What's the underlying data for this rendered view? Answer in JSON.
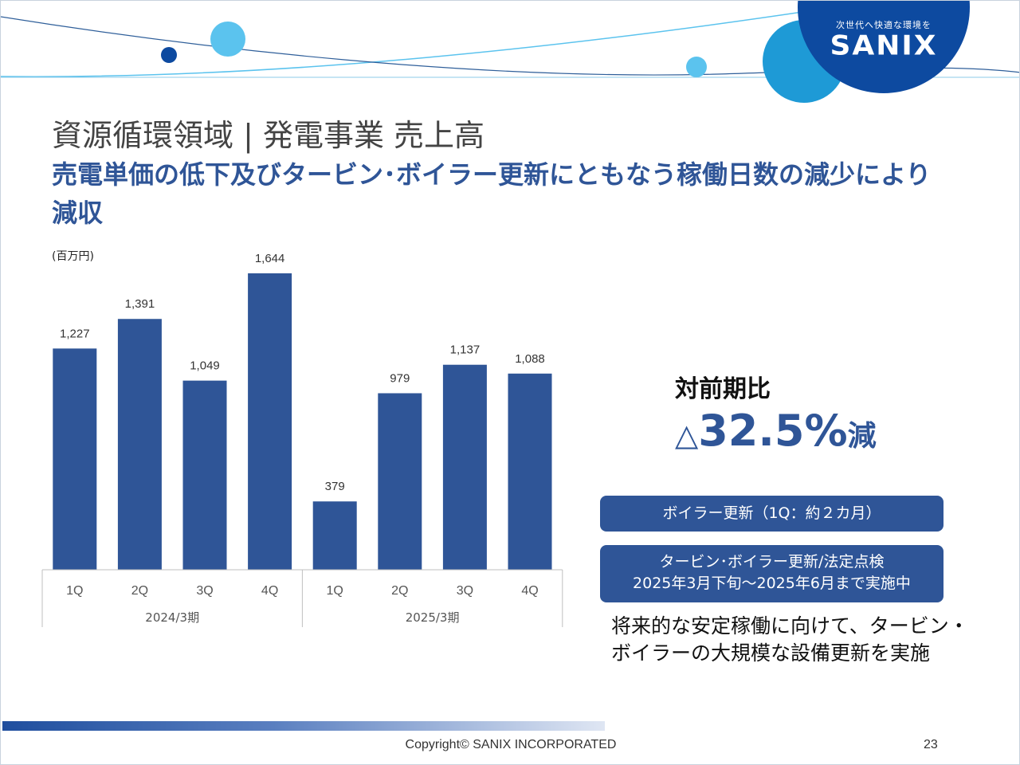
{
  "header": {
    "logo_tagline": "次世代へ快適な環境を",
    "logo_text": "SANIX"
  },
  "title": "資源循環領域 | 発電事業 売上高",
  "subtitle": "売電単価の低下及びタービン･ボイラー更新にともなう稼働日数の減少により減収",
  "chart_data": {
    "type": "bar",
    "unit_label": "(百万円)",
    "groups": [
      {
        "label": "2024/3期",
        "categories": [
          "1Q",
          "2Q",
          "3Q",
          "4Q"
        ],
        "values": [
          1227,
          1391,
          1049,
          1644
        ],
        "value_labels": [
          "1,227",
          "1,391",
          "1,049",
          "1,644"
        ]
      },
      {
        "label": "2025/3期",
        "categories": [
          "1Q",
          "2Q",
          "3Q",
          "4Q"
        ],
        "values": [
          379,
          979,
          1137,
          1088
        ],
        "value_labels": [
          "379",
          "979",
          "1,137",
          "1,088"
        ]
      }
    ],
    "bar_color": "#2f5597",
    "ylim": [
      0,
      1750
    ],
    "grid": false,
    "legend": "none"
  },
  "comparison": {
    "label": "対前期比",
    "prefix": "△",
    "value": "32.5%",
    "suffix": "減"
  },
  "callouts": {
    "boiler": "ボイラー更新（1Q：約２カ月）",
    "turbine_line1": "タービン･ボイラー更新/法定点検",
    "turbine_line2": "2025年3月下旬～2025年6月まで実施中"
  },
  "note": "将来的な安定稼働に向けて、タービン・ボイラーの大規模な設備更新を実施",
  "footer": {
    "copyright": "Copyright©  SANIX INCORPORATED",
    "page": "23"
  },
  "colors": {
    "accent": "#2f5597",
    "logo_blue": "#0d4aa0",
    "light_blue": "#5bc3ee"
  }
}
